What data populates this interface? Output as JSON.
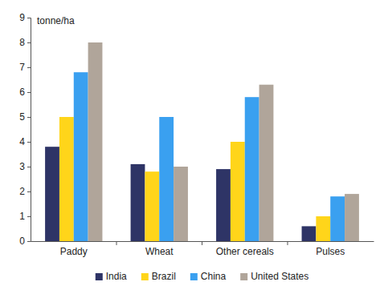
{
  "chart_data": {
    "type": "bar",
    "ylabel": "tonne/ha",
    "categories": [
      "Paddy",
      "Wheat",
      "Other cereals",
      "Pulses"
    ],
    "series": [
      {
        "name": "India",
        "color": "#2e3466",
        "values": [
          3.8,
          3.1,
          2.9,
          0.6
        ]
      },
      {
        "name": "Brazil",
        "color": "#ffd51a",
        "values": [
          5.0,
          2.8,
          4.0,
          1.0
        ]
      },
      {
        "name": "China",
        "color": "#3aa0f0",
        "values": [
          6.8,
          5.0,
          5.8,
          1.8
        ]
      },
      {
        "name": "United States",
        "color": "#b0a59a",
        "values": [
          8.0,
          3.0,
          6.3,
          1.9
        ]
      }
    ],
    "ylim": [
      0,
      9
    ],
    "yticks": [
      0,
      1,
      2,
      3,
      4,
      5,
      6,
      7,
      8,
      9
    ],
    "grid": false,
    "legend": "bottom"
  }
}
